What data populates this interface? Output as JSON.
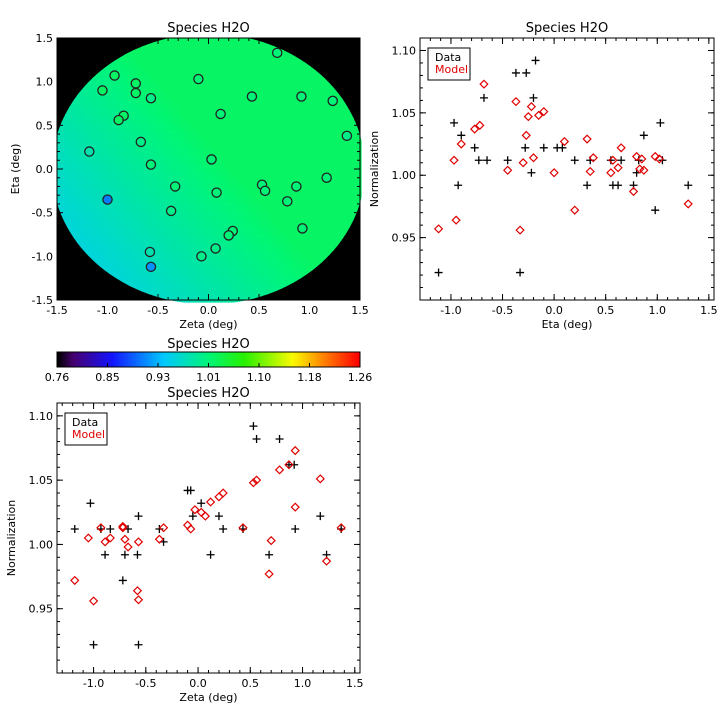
{
  "chart_data": [
    {
      "id": "map",
      "type": "heatmap",
      "title": "Species H2O",
      "xlabel": "Zeta (deg)",
      "ylabel": "Eta (deg)",
      "xlim": [
        -1.5,
        1.5
      ],
      "ylim": [
        -1.5,
        1.5
      ],
      "xticks": [
        "-1.5",
        "-1.0",
        "-0.5",
        "0.0",
        "0.5",
        "1.0",
        "1.5"
      ],
      "yticks": [
        "-1.5",
        "-1.0",
        "-0.5",
        "0.0",
        "0.5",
        "1.0",
        "1.5"
      ],
      "disk_radius": 1.55,
      "field_model": {
        "base": 1.013,
        "slope_x": 0.03,
        "slope_y": 0.022,
        "min": 0.93,
        "max": 1.02
      },
      "points": [
        {
          "x": -1.05,
          "y": 0.9,
          "v": 1.02
        },
        {
          "x": -0.93,
          "y": 1.07,
          "v": 1.02
        },
        {
          "x": -0.72,
          "y": 0.98,
          "v": 1.02
        },
        {
          "x": -0.72,
          "y": 0.87,
          "v": 1.02
        },
        {
          "x": -0.57,
          "y": 0.81,
          "v": 1.0
        },
        {
          "x": -0.84,
          "y": 0.61,
          "v": 1.02
        },
        {
          "x": -0.89,
          "y": 0.56,
          "v": 1.02
        },
        {
          "x": -0.67,
          "y": 0.31,
          "v": 1.0
        },
        {
          "x": -1.18,
          "y": 0.2,
          "v": 0.98
        },
        {
          "x": -0.57,
          "y": 0.05,
          "v": 1.01
        },
        {
          "x": -0.1,
          "y": 1.03,
          "v": 1.01
        },
        {
          "x": 0.68,
          "y": 1.33,
          "v": 1.01
        },
        {
          "x": 0.43,
          "y": 0.83,
          "v": 1.01
        },
        {
          "x": 0.92,
          "y": 0.83,
          "v": 1.01
        },
        {
          "x": 1.23,
          "y": 0.78,
          "v": 1.01
        },
        {
          "x": 1.37,
          "y": 0.38,
          "v": 1.0
        },
        {
          "x": 0.12,
          "y": 0.63,
          "v": 1.01
        },
        {
          "x": 0.03,
          "y": 0.11,
          "v": 1.01
        },
        {
          "x": -0.33,
          "y": -0.2,
          "v": 1.01
        },
        {
          "x": -0.37,
          "y": -0.48,
          "v": 1.0
        },
        {
          "x": 0.08,
          "y": -0.27,
          "v": 1.01
        },
        {
          "x": 0.53,
          "y": -0.18,
          "v": 1.01
        },
        {
          "x": 0.56,
          "y": -0.25,
          "v": 1.01
        },
        {
          "x": 0.87,
          "y": -0.2,
          "v": 1.01
        },
        {
          "x": 0.78,
          "y": -0.37,
          "v": 1.01
        },
        {
          "x": 1.17,
          "y": -0.1,
          "v": 1.01
        },
        {
          "x": 0.93,
          "y": -0.68,
          "v": 1.01
        },
        {
          "x": 0.24,
          "y": -0.71,
          "v": 1.01
        },
        {
          "x": 0.2,
          "y": -0.76,
          "v": 1.01
        },
        {
          "x": 0.07,
          "y": -0.91,
          "v": 1.0
        },
        {
          "x": -0.07,
          "y": -1.0,
          "v": 1.0
        },
        {
          "x": -1.0,
          "y": -0.35,
          "v": 0.9
        },
        {
          "x": -0.58,
          "y": -0.95,
          "v": 0.98
        },
        {
          "x": -0.57,
          "y": -1.12,
          "v": 0.91
        }
      ]
    },
    {
      "id": "colorbar",
      "type": "colorbar",
      "title": "Species H2O",
      "range": [
        0.76,
        1.26
      ],
      "tick_labels": [
        "0.76",
        "0.85",
        "0.93",
        "1.01",
        "1.10",
        "1.18",
        "1.26"
      ]
    },
    {
      "id": "eta",
      "type": "scatter",
      "title": "Species H2O",
      "xlabel": "Eta (deg)",
      "ylabel": "Normalization",
      "xlim": [
        -1.3,
        1.55
      ],
      "ylim": [
        0.9,
        1.11
      ],
      "xticks": [
        "-1.0",
        "-0.5",
        "0.0",
        "0.5",
        "1.0",
        "1.5"
      ],
      "yticks": [
        "0.95",
        "1.00",
        "1.05",
        "1.10"
      ],
      "legend": [
        "Data",
        "Model"
      ],
      "legend_colors": [
        "#000000",
        "#e00000"
      ],
      "series": [
        {
          "name": "Data",
          "marker": "plus",
          "color": "#000000",
          "points": [
            [
              -1.12,
              0.922
            ],
            [
              -0.97,
              1.042
            ],
            [
              -0.93,
              0.992
            ],
            [
              -0.9,
              1.032
            ],
            [
              -0.77,
              1.022
            ],
            [
              -0.73,
              1.012
            ],
            [
              -0.68,
              1.062
            ],
            [
              -0.65,
              1.012
            ],
            [
              -0.45,
              1.012
            ],
            [
              -0.37,
              1.082
            ],
            [
              -0.33,
              0.922
            ],
            [
              -0.28,
              1.022
            ],
            [
              -0.27,
              1.082
            ],
            [
              -0.22,
              1.002
            ],
            [
              -0.2,
              1.062
            ],
            [
              -0.18,
              1.092
            ],
            [
              -0.1,
              1.022
            ],
            [
              0.03,
              1.022
            ],
            [
              0.08,
              1.022
            ],
            [
              0.2,
              1.012
            ],
            [
              0.32,
              0.992
            ],
            [
              0.35,
              1.012
            ],
            [
              0.55,
              1.012
            ],
            [
              0.57,
              0.992
            ],
            [
              0.62,
              0.992
            ],
            [
              0.65,
              1.012
            ],
            [
              0.77,
              0.992
            ],
            [
              0.8,
              1.002
            ],
            [
              0.82,
              1.012
            ],
            [
              0.87,
              1.032
            ],
            [
              0.98,
              0.972
            ],
            [
              1.03,
              1.042
            ],
            [
              1.05,
              1.012
            ],
            [
              1.3,
              0.992
            ]
          ]
        },
        {
          "name": "Model",
          "marker": "diamond",
          "color": "#e00000",
          "points": [
            [
              -1.12,
              0.957
            ],
            [
              -0.97,
              1.012
            ],
            [
              -0.95,
              0.964
            ],
            [
              -0.9,
              1.025
            ],
            [
              -0.77,
              1.037
            ],
            [
              -0.72,
              1.04
            ],
            [
              -0.68,
              1.073
            ],
            [
              -0.45,
              1.004
            ],
            [
              -0.37,
              1.059
            ],
            [
              -0.33,
              0.956
            ],
            [
              -0.3,
              1.01
            ],
            [
              -0.27,
              1.032
            ],
            [
              -0.25,
              1.047
            ],
            [
              -0.22,
              1.055
            ],
            [
              -0.2,
              1.014
            ],
            [
              -0.15,
              1.048
            ],
            [
              -0.1,
              1.051
            ],
            [
              0.0,
              1.002
            ],
            [
              0.1,
              1.027
            ],
            [
              0.2,
              0.972
            ],
            [
              0.32,
              1.029
            ],
            [
              0.35,
              1.003
            ],
            [
              0.38,
              1.014
            ],
            [
              0.55,
              1.002
            ],
            [
              0.57,
              1.012
            ],
            [
              0.62,
              1.006
            ],
            [
              0.65,
              1.022
            ],
            [
              0.77,
              0.987
            ],
            [
              0.8,
              1.015
            ],
            [
              0.83,
              1.005
            ],
            [
              0.85,
              1.013
            ],
            [
              0.87,
              1.004
            ],
            [
              0.98,
              1.015
            ],
            [
              1.02,
              1.013
            ],
            [
              1.3,
              0.977
            ]
          ]
        }
      ]
    },
    {
      "id": "zeta",
      "type": "scatter",
      "title": "Species H2O",
      "xlabel": "Zeta (deg)",
      "ylabel": "Normalization",
      "xlim": [
        -1.35,
        1.55
      ],
      "ylim": [
        0.9,
        1.11
      ],
      "xticks": [
        "-1.0",
        "-0.5",
        "0.0",
        "0.5",
        "1.0",
        "1.5"
      ],
      "yticks": [
        "0.95",
        "1.00",
        "1.05",
        "1.10"
      ],
      "legend": [
        "Data",
        "Model"
      ],
      "legend_colors": [
        "#000000",
        "#e00000"
      ],
      "series": [
        {
          "name": "Data",
          "marker": "plus",
          "color": "#000000",
          "points": [
            [
              -1.18,
              1.012
            ],
            [
              -1.03,
              1.032
            ],
            [
              -1.0,
              0.922
            ],
            [
              -0.93,
              1.012
            ],
            [
              -0.89,
              0.992
            ],
            [
              -0.84,
              1.012
            ],
            [
              -0.72,
              0.972
            ],
            [
              -0.7,
              0.992
            ],
            [
              -0.67,
              1.012
            ],
            [
              -0.58,
              0.992
            ],
            [
              -0.57,
              1.022
            ],
            [
              -0.57,
              0.922
            ],
            [
              -0.37,
              1.012
            ],
            [
              -0.33,
              1.002
            ],
            [
              -0.1,
              1.042
            ],
            [
              -0.07,
              1.042
            ],
            [
              -0.05,
              1.022
            ],
            [
              0.03,
              1.032
            ],
            [
              0.12,
              0.992
            ],
            [
              0.2,
              1.022
            ],
            [
              0.24,
              1.012
            ],
            [
              0.43,
              1.012
            ],
            [
              0.53,
              1.092
            ],
            [
              0.56,
              1.082
            ],
            [
              0.68,
              0.992
            ],
            [
              0.78,
              1.082
            ],
            [
              0.87,
              1.062
            ],
            [
              0.92,
              1.062
            ],
            [
              0.93,
              1.012
            ],
            [
              1.17,
              1.022
            ],
            [
              1.23,
              0.992
            ],
            [
              1.37,
              1.012
            ]
          ]
        },
        {
          "name": "Model",
          "marker": "diamond",
          "color": "#e00000",
          "points": [
            [
              -1.18,
              0.972
            ],
            [
              -1.05,
              1.005
            ],
            [
              -1.0,
              0.956
            ],
            [
              -0.93,
              1.013
            ],
            [
              -0.89,
              1.002
            ],
            [
              -0.84,
              1.005
            ],
            [
              -0.72,
              1.014
            ],
            [
              -0.7,
              1.004
            ],
            [
              -0.72,
              1.013
            ],
            [
              -0.67,
              0.998
            ],
            [
              -0.58,
              0.964
            ],
            [
              -0.57,
              0.957
            ],
            [
              -0.57,
              1.002
            ],
            [
              -0.37,
              1.004
            ],
            [
              -0.33,
              1.013
            ],
            [
              -0.1,
              1.015
            ],
            [
              -0.07,
              1.012
            ],
            [
              -0.03,
              1.027
            ],
            [
              0.03,
              1.025
            ],
            [
              0.07,
              1.022
            ],
            [
              0.12,
              1.033
            ],
            [
              0.2,
              1.037
            ],
            [
              0.24,
              1.04
            ],
            [
              0.43,
              1.013
            ],
            [
              0.53,
              1.048
            ],
            [
              0.56,
              1.05
            ],
            [
              0.68,
              0.977
            ],
            [
              0.7,
              1.003
            ],
            [
              0.78,
              1.058
            ],
            [
              0.87,
              1.062
            ],
            [
              0.93,
              1.073
            ],
            [
              0.93,
              1.029
            ],
            [
              1.17,
              1.051
            ],
            [
              1.23,
              0.987
            ],
            [
              1.37,
              1.013
            ]
          ]
        }
      ]
    }
  ]
}
